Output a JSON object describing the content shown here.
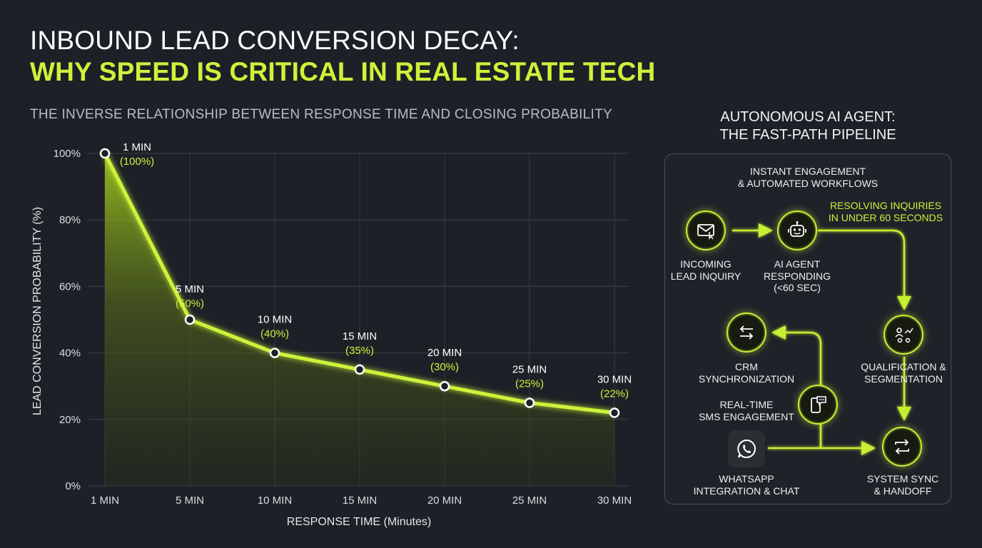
{
  "header": {
    "title_line1": "INBOUND LEAD CONVERSION DECAY:",
    "title_line2": "WHY SPEED IS CRITICAL IN REAL ESTATE TECH",
    "subtitle": "THE INVERSE RELATIONSHIP BETWEEN RESPONSE TIME AND CLOSING PROBABILITY"
  },
  "chart_data": {
    "type": "area",
    "categories": [
      "1 MIN",
      "5 MIN",
      "10 MIN",
      "15 MIN",
      "20 MIN",
      "25 MIN",
      "30 MIN"
    ],
    "values": [
      100,
      50,
      40,
      35,
      30,
      25,
      22
    ],
    "point_labels": [
      "1 MIN",
      "5 MIN",
      "10 MIN",
      "15 MIN",
      "20 MIN",
      "25 MIN",
      "30 MIN"
    ],
    "value_labels": [
      "(100%)",
      "(50%)",
      "(40%)",
      "(35%)",
      "(30%)",
      "(25%)",
      "(22%)"
    ],
    "title": "INBOUND LEAD CONVERSION DECAY: WHY SPEED IS CRITICAL IN REAL ESTATE TECH",
    "xlabel": "RESPONSE TIME (Minutes)",
    "ylabel": "LEAD CONVERSION PROBABILITY (%)",
    "ylim": [
      0,
      100
    ],
    "y_ticks": [
      "0%",
      "20%",
      "40%",
      "60%",
      "80%",
      "100%"
    ],
    "grid": true,
    "color": "#ccf33a"
  },
  "panel": {
    "title_line1": "AUTONOMOUS AI AGENT:",
    "title_line2": "THE FAST-PATH PIPELINE",
    "header_line1": "INSTANT ENGAGEMENT",
    "header_line2": "& AUTOMATED WORKFLOWS",
    "note_line1": "RESOLVING INQUIRIES",
    "note_line2": "IN UNDER 60 SECONDS",
    "steps": {
      "incoming": {
        "line1": "INCOMING",
        "line2": "LEAD INQUIRY",
        "icon": "envelope-icon"
      },
      "ai_agent": {
        "line1": "AI AGENT",
        "line2": "RESPONDING",
        "line3": "(<60 SEC)",
        "icon": "robot-icon"
      },
      "qualification": {
        "line1": "QUALIFICATION &",
        "line2": "SEGMENTATION",
        "icon": "people-chart-icon"
      },
      "system_sync": {
        "line1": "SYSTEM SYNC",
        "line2": "& HANDOFF",
        "icon": "sync-arrows-icon"
      },
      "crm": {
        "line1": "CRM",
        "line2": "SYNCHRONIZATION",
        "icon": "swap-arrows-icon"
      },
      "sms": {
        "line1": "REAL-TIME",
        "line2": "SMS ENGAGEMENT",
        "icon": "phone-chat-icon"
      },
      "whatsapp": {
        "line1": "WHATSAPP",
        "line2": "INTEGRATION & CHAT",
        "icon": "whatsapp-icon"
      }
    },
    "accent": "#ccf33a"
  }
}
